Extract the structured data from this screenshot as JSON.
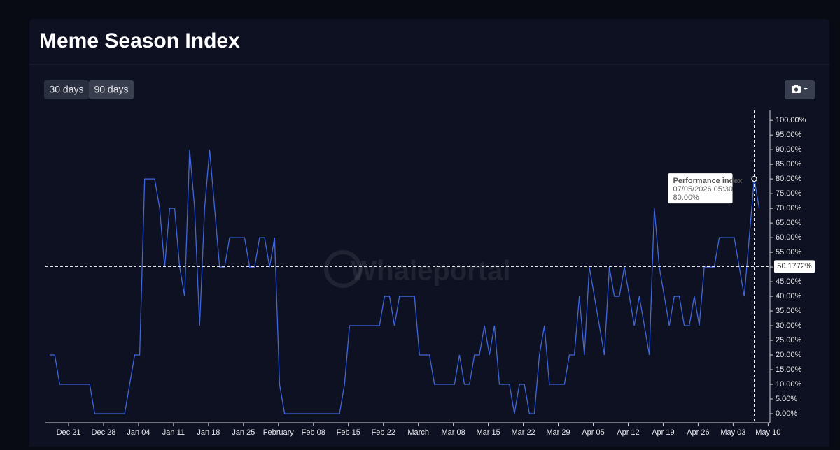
{
  "controls": {
    "buttons": [
      "30 days",
      "90 days"
    ]
  },
  "chart_data": {
    "type": "line",
    "title": "Meme Season Index",
    "watermark": "Whaleportal",
    "x": [
      "2025-12-17T05:30",
      "2025-12-18T05:30",
      "2025-12-19T05:30",
      "2025-12-20T05:30",
      "2025-12-21T05:30",
      "2025-12-22T05:30",
      "2025-12-23T05:30",
      "2025-12-24T05:30",
      "2025-12-25T05:30",
      "2025-12-26T05:30",
      "2025-12-27T05:30",
      "2025-12-28T05:30",
      "2025-12-29T05:30",
      "2025-12-30T05:30",
      "2025-12-31T05:30",
      "2026-01-01T05:30",
      "2026-01-02T05:30",
      "2026-01-03T05:30",
      "2026-01-04T05:30",
      "2026-01-05T05:30",
      "2026-01-06T05:30",
      "2026-01-07T05:30",
      "2026-01-08T05:30",
      "2026-01-09T05:30",
      "2026-01-10T05:30",
      "2026-01-11T05:30",
      "2026-01-12T05:30",
      "2026-01-13T05:30",
      "2026-01-14T05:30",
      "2026-01-15T05:30",
      "2026-01-16T05:30",
      "2026-01-17T05:30",
      "2026-01-18T05:30",
      "2026-01-19T05:30",
      "2026-01-20T05:30",
      "2026-01-21T05:30",
      "2026-01-22T05:30",
      "2026-01-23T05:30",
      "2026-01-24T05:30",
      "2026-01-25T05:30",
      "2026-01-26T05:30",
      "2026-01-27T05:30",
      "2026-01-28T05:30",
      "2026-01-29T05:30",
      "2026-01-30T05:30",
      "2026-01-31T05:30",
      "2026-02-01T05:30",
      "2026-02-02T05:30",
      "2026-02-03T05:30",
      "2026-02-04T05:30",
      "2026-02-05T05:30",
      "2026-02-06T05:30",
      "2026-02-07T05:30",
      "2026-02-08T05:30",
      "2026-02-09T05:30",
      "2026-02-10T05:30",
      "2026-02-11T05:30",
      "2026-02-12T05:30",
      "2026-02-13T05:30",
      "2026-02-14T05:30",
      "2026-02-15T05:30",
      "2026-02-16T05:30",
      "2026-02-17T05:30",
      "2026-02-18T05:30",
      "2026-02-19T05:30",
      "2026-02-20T05:30",
      "2026-02-21T05:30",
      "2026-02-22T05:30",
      "2026-02-23T05:30",
      "2026-02-24T05:30",
      "2026-02-25T05:30",
      "2026-02-26T05:30",
      "2026-02-27T05:30",
      "2026-02-28T05:30",
      "2026-03-01T05:30",
      "2026-03-02T05:30",
      "2026-03-03T05:30",
      "2026-03-04T05:30",
      "2026-03-05T05:30",
      "2026-03-06T05:30",
      "2026-03-07T05:30",
      "2026-03-08T05:30",
      "2026-03-09T05:30",
      "2026-03-10T05:30",
      "2026-03-11T05:30",
      "2026-03-12T05:30",
      "2026-03-13T05:30",
      "2026-03-14T05:30",
      "2026-03-15T05:30",
      "2026-03-16T05:30",
      "2026-03-17T05:30",
      "2026-03-18T05:30",
      "2026-03-19T05:30",
      "2026-03-20T05:30",
      "2026-03-21T05:30",
      "2026-03-22T05:30",
      "2026-03-23T05:30",
      "2026-03-24T05:30",
      "2026-03-25T05:30",
      "2026-03-26T05:30",
      "2026-03-27T05:30",
      "2026-03-28T05:30",
      "2026-03-29T05:30",
      "2026-03-30T05:30",
      "2026-03-31T05:30",
      "2026-04-01T05:30",
      "2026-04-02T05:30",
      "2026-04-03T05:30",
      "2026-04-04T05:30",
      "2026-04-05T05:30",
      "2026-04-06T05:30",
      "2026-04-07T05:30",
      "2026-04-08T05:30",
      "2026-04-09T05:30",
      "2026-04-10T05:30",
      "2026-04-11T05:30",
      "2026-04-12T05:30",
      "2026-04-13T05:30",
      "2026-04-14T05:30",
      "2026-04-15T05:30",
      "2026-04-16T05:30",
      "2026-04-17T05:30",
      "2026-04-18T05:30",
      "2026-04-19T05:30",
      "2026-04-20T05:30",
      "2026-04-21T05:30",
      "2026-04-22T05:30",
      "2026-04-23T05:30",
      "2026-04-24T05:30",
      "2026-04-25T05:30",
      "2026-04-26T05:30",
      "2026-04-27T05:30",
      "2026-04-28T05:30",
      "2026-04-29T05:30",
      "2026-04-30T05:30",
      "2026-05-01T05:30",
      "2026-05-02T05:30",
      "2026-05-03T05:30",
      "2026-05-04T05:30",
      "2026-05-05T05:30",
      "2026-05-06T05:30",
      "2026-05-07T05:30",
      "2026-05-08T05:30"
    ],
    "series": [
      {
        "name": "Performance index",
        "color": "#3f66db",
        "values": [
          20,
          20,
          10,
          10,
          10,
          10,
          10,
          10,
          10,
          0,
          0,
          0,
          0,
          0,
          0,
          0,
          10,
          20,
          20,
          80,
          80,
          80,
          70,
          50,
          70,
          70,
          50,
          40,
          90,
          70,
          30,
          70,
          90,
          70,
          50,
          50,
          60,
          60,
          60,
          60,
          50,
          50,
          60,
          60,
          50,
          60,
          10,
          0,
          0,
          0,
          0,
          0,
          0,
          0,
          0,
          0,
          0,
          0,
          0,
          10,
          30,
          30,
          30,
          30,
          30,
          30,
          30,
          40,
          40,
          30,
          40,
          40,
          40,
          40,
          20,
          20,
          20,
          10,
          10,
          10,
          10,
          10,
          20,
          10,
          10,
          20,
          20,
          30,
          20,
          30,
          10,
          10,
          10,
          0,
          10,
          10,
          0,
          0,
          20,
          30,
          10,
          10,
          10,
          10,
          20,
          20,
          40,
          20,
          50,
          40,
          30,
          20,
          50,
          40,
          40,
          50,
          40,
          30,
          40,
          30,
          20,
          70,
          50,
          40,
          30,
          40,
          40,
          30,
          30,
          40,
          30,
          50,
          50,
          50,
          60,
          60,
          60,
          60,
          50,
          40,
          60,
          80,
          70
        ]
      }
    ],
    "xlim": [
      "2025-12-16T09:00",
      "2026-05-10T09:00"
    ],
    "xticks": [
      {
        "value": "2025-12-21T00:00",
        "label": "Dec 21"
      },
      {
        "value": "2025-12-28T00:00",
        "label": "Dec 28"
      },
      {
        "value": "2026-01-04T00:00",
        "label": "Jan 04"
      },
      {
        "value": "2026-01-11T00:00",
        "label": "Jan 11"
      },
      {
        "value": "2026-01-18T00:00",
        "label": "Jan 18"
      },
      {
        "value": "2026-01-25T00:00",
        "label": "Jan 25"
      },
      {
        "value": "2026-02-01T00:00",
        "label": "February"
      },
      {
        "value": "2026-02-08T00:00",
        "label": "Feb 08"
      },
      {
        "value": "2026-02-15T00:00",
        "label": "Feb 15"
      },
      {
        "value": "2026-02-22T00:00",
        "label": "Feb 22"
      },
      {
        "value": "2026-03-01T00:00",
        "label": "March"
      },
      {
        "value": "2026-03-08T00:00",
        "label": "Mar 08"
      },
      {
        "value": "2026-03-15T00:00",
        "label": "Mar 15"
      },
      {
        "value": "2026-03-22T00:00",
        "label": "Mar 22"
      },
      {
        "value": "2026-03-29T00:00",
        "label": "Mar 29"
      },
      {
        "value": "2026-04-05T00:00",
        "label": "Apr 05"
      },
      {
        "value": "2026-04-12T00:00",
        "label": "Apr 12"
      },
      {
        "value": "2026-04-19T00:00",
        "label": "Apr 19"
      },
      {
        "value": "2026-04-26T00:00",
        "label": "Apr 26"
      },
      {
        "value": "2026-05-03T00:00",
        "label": "May 03"
      },
      {
        "value": "2026-05-10T00:00",
        "label": "May 10"
      }
    ],
    "ylim": [
      -3.1,
      102.9
    ],
    "yticks": [
      {
        "value": 0,
        "label": "0.00%"
      },
      {
        "value": 5,
        "label": "5.00%"
      },
      {
        "value": 10,
        "label": "10.00%"
      },
      {
        "value": 15,
        "label": "15.00%"
      },
      {
        "value": 20,
        "label": "20.00%"
      },
      {
        "value": 25,
        "label": "25.00%"
      },
      {
        "value": 30,
        "label": "30.00%"
      },
      {
        "value": 35,
        "label": "35.00%"
      },
      {
        "value": 40,
        "label": "40.00%"
      },
      {
        "value": 45,
        "label": "45.00%"
      },
      {
        "value": 50,
        "label": "50.00%"
      },
      {
        "value": 55,
        "label": "55.00%"
      },
      {
        "value": 60,
        "label": "60.00%"
      },
      {
        "value": 65,
        "label": "65.00%"
      },
      {
        "value": 70,
        "label": "70.00%"
      },
      {
        "value": 75,
        "label": "75.00%"
      },
      {
        "value": 80,
        "label": "80.00%"
      },
      {
        "value": 85,
        "label": "85.00%"
      },
      {
        "value": 90,
        "label": "90.00%"
      },
      {
        "value": 95,
        "label": "95.00%"
      },
      {
        "value": 100,
        "label": "100.00%"
      }
    ],
    "reference_line": {
      "value": 50.1772,
      "label": "50.1772%"
    },
    "tooltip": {
      "title": "Performance index",
      "date": "07/05/2026 05:30",
      "x": "2026-05-07T05:30",
      "value": 80,
      "label": "80.00%"
    }
  }
}
